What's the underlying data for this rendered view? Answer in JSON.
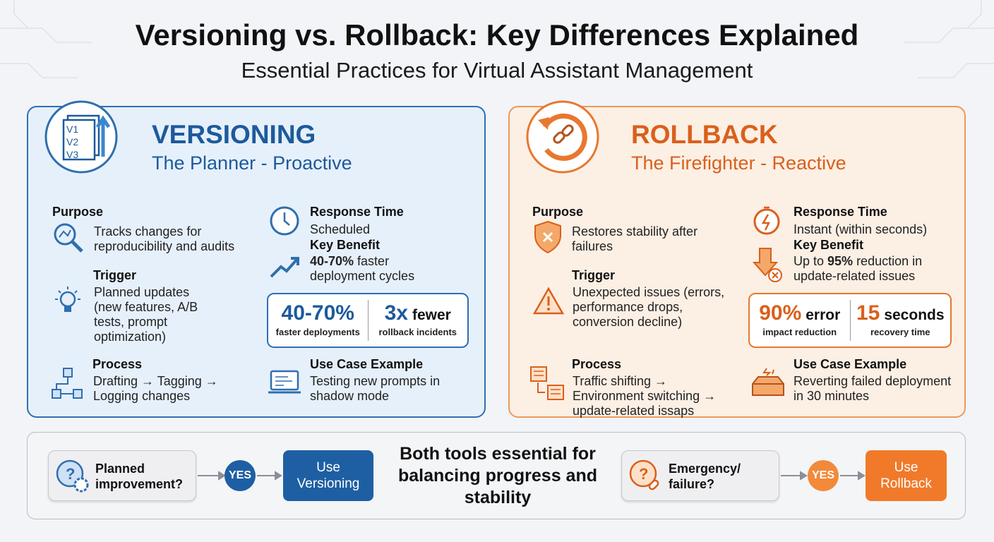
{
  "header": {
    "title": "Versioning vs. Rollback: Key Differences Explained",
    "subtitle": "Essential Practices for Virtual Assistant Management"
  },
  "panels": [
    {
      "title": "VERSIONING",
      "subtitle": "The Planner - Proactive",
      "icon_labels": [
        "V1",
        "V2",
        "V3"
      ],
      "purpose": {
        "label": "Purpose",
        "text": "Tracks changes for reproducibility and audits"
      },
      "trigger": {
        "label": "Trigger",
        "text": "Planned updates (new features, A/B tests, prompt optimization)"
      },
      "process": {
        "label": "Process",
        "text": "Drafting → Tagging → Logging changes"
      },
      "response_time": {
        "label": "Response Time",
        "text": "Scheduled"
      },
      "key_benefit": {
        "label": "Key Benefit",
        "emphasis": "40-70%",
        "text_after": " faster deployment cycles"
      },
      "stats": [
        {
          "value": "40-70%",
          "caption": "faster deployments"
        },
        {
          "value": "3x",
          "unit": "fewer",
          "caption": "rollback incidents"
        }
      ],
      "use_case": {
        "label": "Use Case Example",
        "text": "Testing new prompts in shadow mode"
      }
    },
    {
      "title": "ROLLBACK",
      "subtitle": "The Firefighter - Reactive",
      "purpose": {
        "label": "Purpose",
        "text": "Restores stability after failures"
      },
      "trigger": {
        "label": "Trigger",
        "text": "Unexpected issues (errors, performance drops, conversion decline)"
      },
      "process": {
        "label": "Process",
        "text": "Traffic shifting → Environment switching → update-related issaps"
      },
      "response_time": {
        "label": "Response Time",
        "text": "Instant (within seconds)"
      },
      "key_benefit": {
        "label": "Key Benefit",
        "text_before": "Up to ",
        "emphasis": "95%",
        "text_after": " reduction in update-related issues"
      },
      "stats": [
        {
          "value": "90%",
          "unit": "error",
          "caption": "impact reduction"
        },
        {
          "value": "15",
          "unit": "seconds",
          "caption": "recovery time"
        }
      ],
      "use_case": {
        "label": "Use Case Example",
        "text": "Reverting failed deployment in 30 minutes"
      }
    }
  ],
  "decision": {
    "left": {
      "question": "Planned improvement?",
      "answer": "YES",
      "action": "Use Versioning"
    },
    "center": "Both tools essential for balancing progress and stability",
    "right": {
      "question": "Emergency/ failure?",
      "answer": "YES",
      "action": "Use Rollback"
    }
  }
}
